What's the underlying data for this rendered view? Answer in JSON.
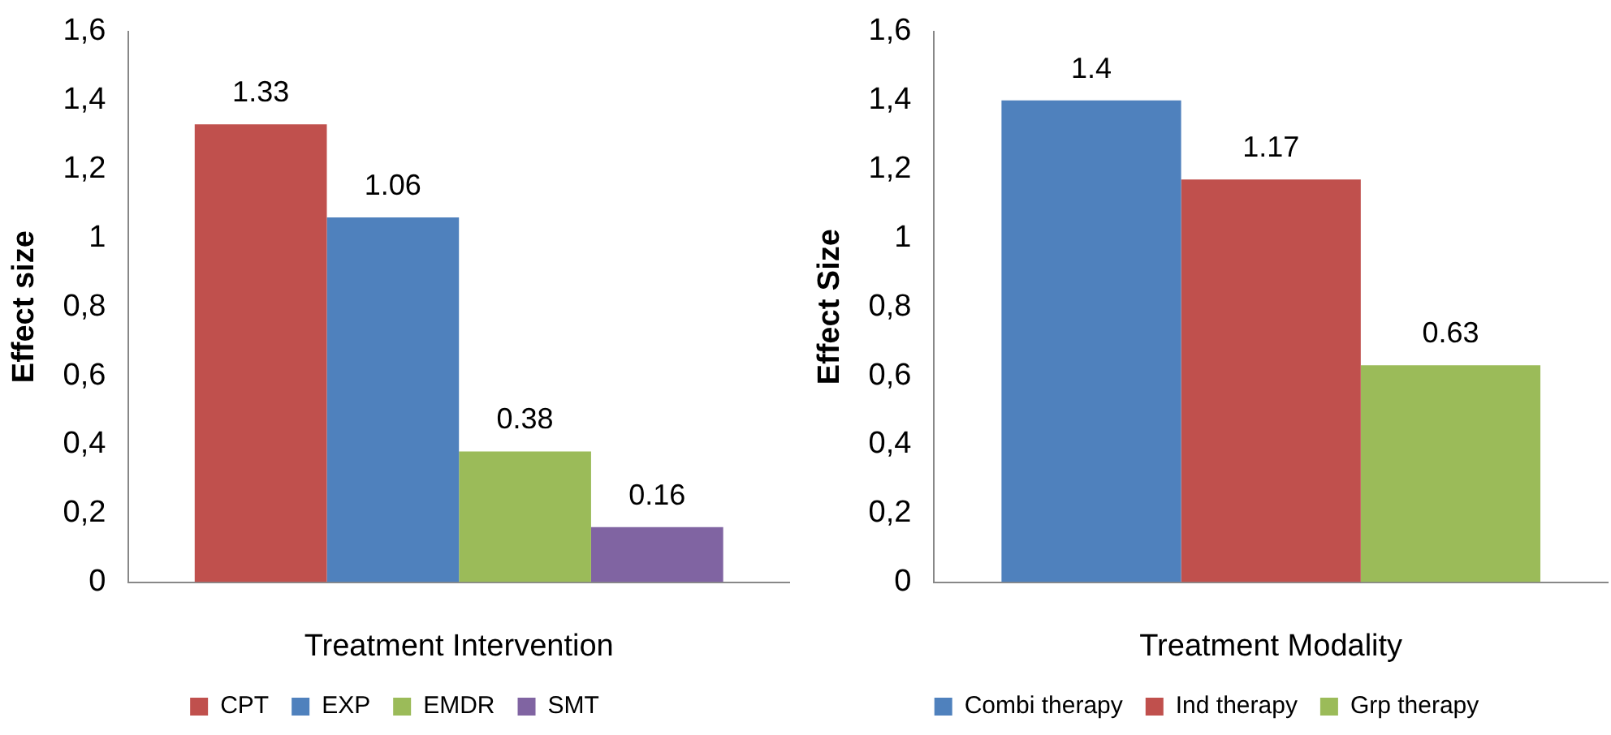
{
  "chart_data": [
    {
      "type": "bar",
      "xlabel": "Treatment Intervention",
      "ylabel": "Effect size",
      "categories": [
        null
      ],
      "legend": "bottom",
      "data_labels": true,
      "ylim": [
        0,
        1.6
      ],
      "yticks": [
        {
          "value": 0,
          "label": "0"
        },
        {
          "value": 0.2,
          "label": "0,2"
        },
        {
          "value": 0.4,
          "label": "0,4"
        },
        {
          "value": 0.6,
          "label": "0,6"
        },
        {
          "value": 0.8,
          "label": "0,8"
        },
        {
          "value": 1,
          "label": "1"
        },
        {
          "value": 1.2,
          "label": "1,2"
        },
        {
          "value": 1.4,
          "label": "1,4"
        },
        {
          "value": 1.6,
          "label": "1,6"
        }
      ],
      "series": [
        {
          "name": "CPT",
          "color": "#c0504d",
          "values": [
            1.33
          ]
        },
        {
          "name": "EXP",
          "color": "#4f81bd",
          "values": [
            1.06
          ]
        },
        {
          "name": "EMDR",
          "color": "#9bbb59",
          "values": [
            0.38
          ]
        },
        {
          "name": "SMT",
          "color": "#8064a2",
          "values": [
            0.16
          ]
        }
      ]
    },
    {
      "type": "bar",
      "xlabel": "Treatment Modality",
      "ylabel": "Effect Size",
      "categories": [
        null
      ],
      "legend": "bottom",
      "data_labels": true,
      "ylim": [
        0,
        1.6
      ],
      "yticks": [
        {
          "value": 0,
          "label": "0"
        },
        {
          "value": 0.2,
          "label": "0,2"
        },
        {
          "value": 0.4,
          "label": "0,4"
        },
        {
          "value": 0.6,
          "label": "0,6"
        },
        {
          "value": 0.8,
          "label": "0,8"
        },
        {
          "value": 1,
          "label": "1"
        },
        {
          "value": 1.2,
          "label": "1,2"
        },
        {
          "value": 1.4,
          "label": "1,4"
        },
        {
          "value": 1.6,
          "label": "1,6"
        }
      ],
      "series": [
        {
          "name": "Combi therapy",
          "color": "#4f81bd",
          "values": [
            1.4
          ]
        },
        {
          "name": "Ind therapy",
          "color": "#c0504d",
          "values": [
            1.17
          ]
        },
        {
          "name": "Grp therapy",
          "color": "#9bbb59",
          "values": [
            0.63
          ]
        }
      ]
    }
  ]
}
